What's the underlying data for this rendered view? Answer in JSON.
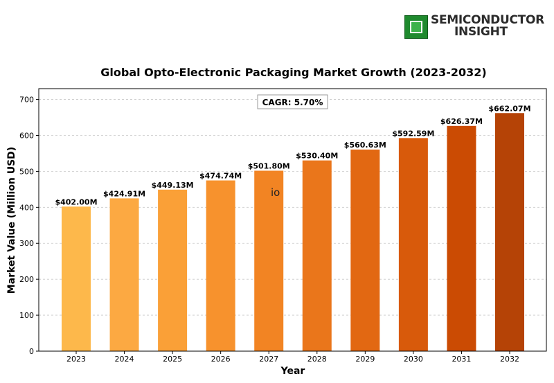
{
  "logo": {
    "line1": "SEMICONDUCTOR",
    "line2": "INSIGHT",
    "icon": "chip-icon"
  },
  "chart_data": {
    "type": "bar",
    "title": "Global Opto-Electronic Packaging Market Growth (2023-2032)",
    "xlabel": "Year",
    "ylabel": "Market Value (Million USD)",
    "categories": [
      "2023",
      "2024",
      "2025",
      "2026",
      "2027",
      "2028",
      "2029",
      "2030",
      "2031",
      "2032"
    ],
    "values": [
      402.0,
      424.91,
      449.13,
      474.74,
      501.8,
      530.4,
      560.63,
      592.59,
      626.37,
      662.07
    ],
    "data_labels": [
      "$402.00M",
      "$424.91M",
      "$449.13M",
      "$474.74M",
      "$501.80M",
      "$530.40M",
      "$560.63M",
      "$592.59M",
      "$626.37M",
      "$662.07M"
    ],
    "colors": [
      "#fdb84b",
      "#fca942",
      "#faa037",
      "#f7922d",
      "#f28423",
      "#ea761b",
      "#e26812",
      "#d85a0b",
      "#cb4b03",
      "#b54306"
    ],
    "ylim": [
      0,
      730
    ],
    "yticks": [
      0,
      100,
      200,
      300,
      400,
      500,
      600,
      700
    ],
    "grid": "horizontal dashed",
    "annotation": "CAGR: 5.70%",
    "stray_text": "io"
  }
}
